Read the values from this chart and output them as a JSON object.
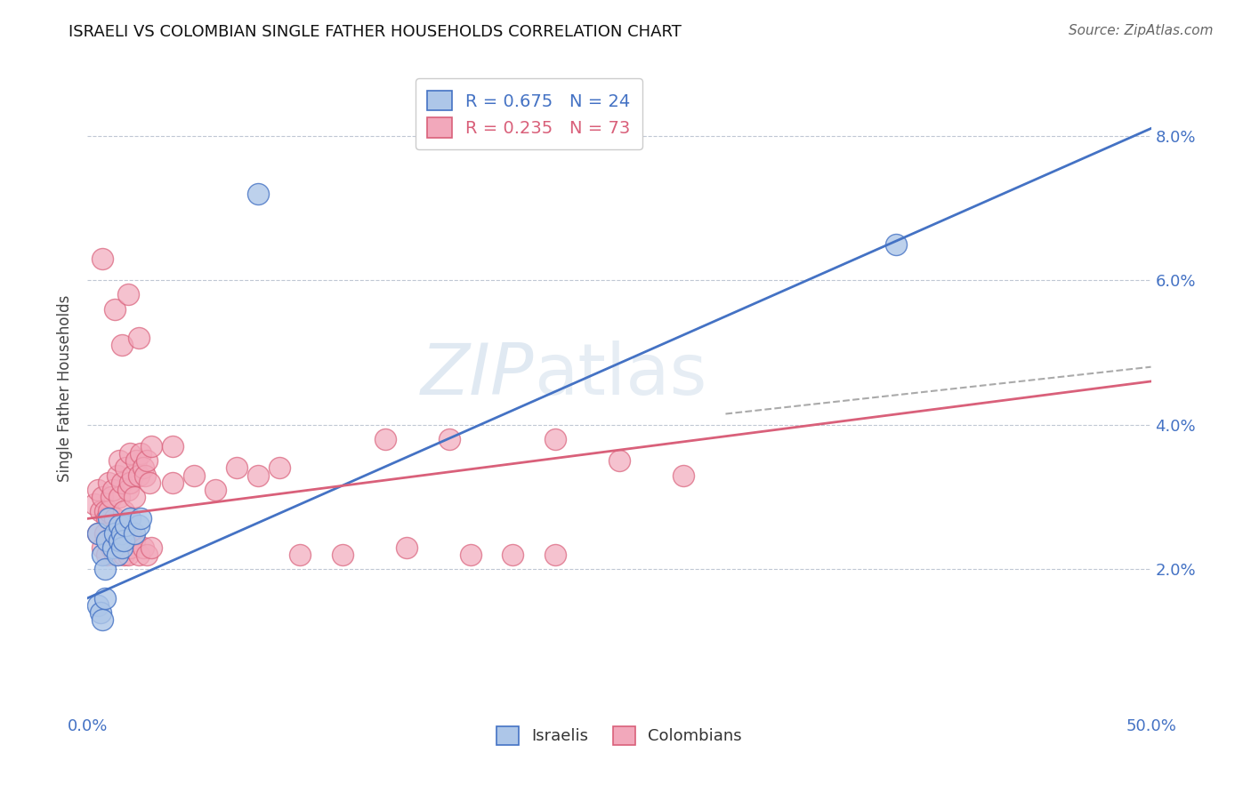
{
  "title": "ISRAELI VS COLOMBIAN SINGLE FATHER HOUSEHOLDS CORRELATION CHART",
  "source": "Source: ZipAtlas.com",
  "ylabel": "Single Father Households",
  "xlim": [
    0.0,
    0.5
  ],
  "ylim": [
    0.0,
    0.09
  ],
  "yticks": [
    0.02,
    0.04,
    0.06,
    0.08
  ],
  "ytick_labels": [
    "2.0%",
    "4.0%",
    "6.0%",
    "8.0%"
  ],
  "xtick_vals": [
    0.0,
    0.1,
    0.2,
    0.3,
    0.4,
    0.5
  ],
  "xtick_labels": [
    "0.0%",
    "",
    "",
    "",
    "",
    "50.0%"
  ],
  "legend_line1": "R = 0.675   N = 24",
  "legend_line2": "R = 0.235   N = 73",
  "israeli_color": "#adc6e8",
  "colombian_color": "#f2a8bb",
  "israeli_line_color": "#4472c4",
  "colombian_line_color": "#d9607a",
  "watermark": "ZIPatlas",
  "isr_line": [
    [
      0.0,
      0.016
    ],
    [
      0.5,
      0.081
    ]
  ],
  "col_line": [
    [
      0.0,
      0.027
    ],
    [
      0.5,
      0.046
    ]
  ],
  "dash_line": [
    [
      0.3,
      0.0415
    ],
    [
      0.5,
      0.048
    ]
  ],
  "israeli_scatter": [
    [
      0.005,
      0.025
    ],
    [
      0.007,
      0.022
    ],
    [
      0.008,
      0.02
    ],
    [
      0.009,
      0.024
    ],
    [
      0.01,
      0.027
    ],
    [
      0.012,
      0.023
    ],
    [
      0.013,
      0.025
    ],
    [
      0.014,
      0.022
    ],
    [
      0.015,
      0.026
    ],
    [
      0.015,
      0.024
    ],
    [
      0.016,
      0.025
    ],
    [
      0.016,
      0.023
    ],
    [
      0.017,
      0.024
    ],
    [
      0.018,
      0.026
    ],
    [
      0.02,
      0.027
    ],
    [
      0.022,
      0.025
    ],
    [
      0.024,
      0.026
    ],
    [
      0.025,
      0.027
    ],
    [
      0.005,
      0.015
    ],
    [
      0.006,
      0.014
    ],
    [
      0.007,
      0.013
    ],
    [
      0.008,
      0.016
    ],
    [
      0.38,
      0.065
    ],
    [
      0.08,
      0.072
    ]
  ],
  "colombian_scatter": [
    [
      0.003,
      0.029
    ],
    [
      0.005,
      0.031
    ],
    [
      0.006,
      0.028
    ],
    [
      0.007,
      0.03
    ],
    [
      0.008,
      0.028
    ],
    [
      0.009,
      0.027
    ],
    [
      0.01,
      0.032
    ],
    [
      0.01,
      0.028
    ],
    [
      0.011,
      0.03
    ],
    [
      0.012,
      0.031
    ],
    [
      0.013,
      0.027
    ],
    [
      0.014,
      0.033
    ],
    [
      0.015,
      0.035
    ],
    [
      0.015,
      0.03
    ],
    [
      0.016,
      0.032
    ],
    [
      0.017,
      0.028
    ],
    [
      0.018,
      0.034
    ],
    [
      0.019,
      0.031
    ],
    [
      0.02,
      0.036
    ],
    [
      0.02,
      0.032
    ],
    [
      0.021,
      0.033
    ],
    [
      0.022,
      0.03
    ],
    [
      0.023,
      0.035
    ],
    [
      0.024,
      0.033
    ],
    [
      0.025,
      0.036
    ],
    [
      0.026,
      0.034
    ],
    [
      0.027,
      0.033
    ],
    [
      0.028,
      0.035
    ],
    [
      0.029,
      0.032
    ],
    [
      0.03,
      0.037
    ],
    [
      0.005,
      0.025
    ],
    [
      0.007,
      0.023
    ],
    [
      0.008,
      0.025
    ],
    [
      0.009,
      0.022
    ],
    [
      0.01,
      0.024
    ],
    [
      0.011,
      0.023
    ],
    [
      0.012,
      0.025
    ],
    [
      0.013,
      0.022
    ],
    [
      0.014,
      0.024
    ],
    [
      0.015,
      0.023
    ],
    [
      0.016,
      0.025
    ],
    [
      0.017,
      0.022
    ],
    [
      0.018,
      0.024
    ],
    [
      0.019,
      0.022
    ],
    [
      0.02,
      0.023
    ],
    [
      0.022,
      0.024
    ],
    [
      0.024,
      0.022
    ],
    [
      0.026,
      0.023
    ],
    [
      0.028,
      0.022
    ],
    [
      0.03,
      0.023
    ],
    [
      0.04,
      0.032
    ],
    [
      0.05,
      0.033
    ],
    [
      0.06,
      0.031
    ],
    [
      0.07,
      0.034
    ],
    [
      0.08,
      0.033
    ],
    [
      0.09,
      0.034
    ],
    [
      0.1,
      0.022
    ],
    [
      0.12,
      0.022
    ],
    [
      0.15,
      0.023
    ],
    [
      0.18,
      0.022
    ],
    [
      0.2,
      0.022
    ],
    [
      0.22,
      0.022
    ],
    [
      0.25,
      0.035
    ],
    [
      0.28,
      0.033
    ],
    [
      0.14,
      0.038
    ],
    [
      0.17,
      0.038
    ],
    [
      0.22,
      0.038
    ],
    [
      0.007,
      0.063
    ],
    [
      0.013,
      0.056
    ],
    [
      0.016,
      0.051
    ],
    [
      0.019,
      0.058
    ],
    [
      0.024,
      0.052
    ],
    [
      0.04,
      0.037
    ]
  ]
}
